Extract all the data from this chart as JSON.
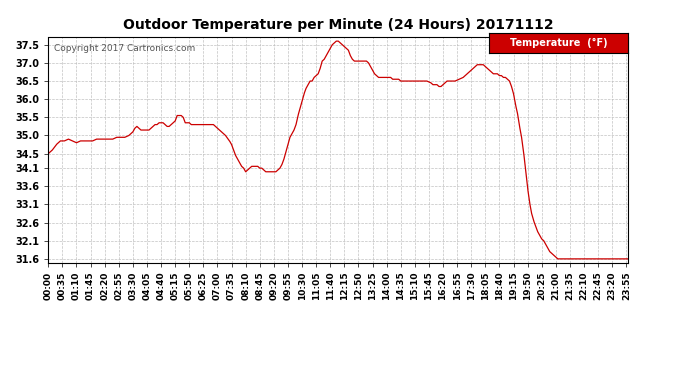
{
  "title": "Outdoor Temperature per Minute (24 Hours) 20171112",
  "copyright": "Copyright 2017 Cartronics.com",
  "legend_label": "Temperature  (°F)",
  "legend_bg": "#cc0000",
  "legend_text_color": "#ffffff",
  "line_color": "#cc0000",
  "bg_color": "#ffffff",
  "grid_color": "#bbbbbb",
  "ylim": [
    31.5,
    37.7
  ],
  "yticks": [
    31.6,
    32.1,
    32.6,
    33.1,
    33.6,
    34.1,
    34.5,
    35.0,
    35.5,
    36.0,
    36.5,
    37.0,
    37.5
  ],
  "xtick_interval": 35,
  "key_points": {
    "0": 34.5,
    "10": 34.6,
    "20": 34.75,
    "30": 34.85,
    "40": 34.85,
    "50": 34.9,
    "60": 34.85,
    "70": 34.8,
    "80": 34.85,
    "90": 34.85,
    "100": 34.85,
    "110": 34.85,
    "120": 34.9,
    "130": 34.9,
    "140": 34.9,
    "150": 34.9,
    "160": 34.9,
    "170": 34.95,
    "180": 34.95,
    "190": 34.95,
    "200": 35.0,
    "210": 35.1,
    "215": 35.2,
    "220": 35.25,
    "225": 35.2,
    "230": 35.15,
    "235": 35.15,
    "240": 35.15,
    "245": 35.15,
    "250": 35.15,
    "255": 35.2,
    "260": 35.25,
    "265": 35.3,
    "270": 35.3,
    "275": 35.35,
    "280": 35.35,
    "285": 35.35,
    "290": 35.3,
    "295": 35.25,
    "300": 35.25,
    "305": 35.3,
    "310": 35.35,
    "315": 35.4,
    "320": 35.55,
    "325": 35.55,
    "330": 35.55,
    "335": 35.5,
    "340": 35.35,
    "345": 35.35,
    "350": 35.35,
    "355": 35.3,
    "360": 35.3,
    "365": 35.3,
    "370": 35.3,
    "375": 35.3,
    "380": 35.3,
    "385": 35.3,
    "390": 35.3,
    "400": 35.3,
    "410": 35.3,
    "415": 35.25,
    "420": 35.2,
    "425": 35.15,
    "430": 35.1,
    "440": 35.0,
    "450": 34.85,
    "455": 34.75,
    "460": 34.6,
    "465": 34.45,
    "470": 34.35,
    "475": 34.25,
    "480": 34.15,
    "485": 34.1,
    "490": 34.0,
    "495": 34.05,
    "500": 34.1,
    "505": 34.15,
    "510": 34.15,
    "515": 34.15,
    "520": 34.15,
    "525": 34.1,
    "530": 34.1,
    "535": 34.05,
    "540": 34.0,
    "545": 34.0,
    "550": 34.0,
    "555": 34.0,
    "560": 34.0,
    "565": 34.0,
    "570": 34.05,
    "575": 34.1,
    "580": 34.2,
    "585": 34.35,
    "590": 34.55,
    "595": 34.75,
    "600": 34.95,
    "605": 35.05,
    "610": 35.15,
    "615": 35.3,
    "620": 35.55,
    "625": 35.75,
    "630": 35.95,
    "635": 36.15,
    "640": 36.3,
    "645": 36.4,
    "650": 36.5,
    "655": 36.5,
    "660": 36.6,
    "665": 36.65,
    "670": 36.7,
    "675": 36.85,
    "680": 37.05,
    "685": 37.1,
    "690": 37.2,
    "695": 37.3,
    "700": 37.4,
    "705": 37.5,
    "710": 37.55,
    "715": 37.6,
    "720": 37.6,
    "725": 37.55,
    "730": 37.5,
    "735": 37.45,
    "740": 37.4,
    "745": 37.35,
    "750": 37.2,
    "755": 37.1,
    "760": 37.05,
    "765": 37.05,
    "770": 37.05,
    "775": 37.05,
    "780": 37.05,
    "785": 37.05,
    "790": 37.05,
    "795": 37.0,
    "800": 36.9,
    "805": 36.8,
    "810": 36.7,
    "815": 36.65,
    "820": 36.6,
    "825": 36.6,
    "830": 36.6,
    "835": 36.6,
    "840": 36.6,
    "845": 36.6,
    "850": 36.6,
    "855": 36.55,
    "860": 36.55,
    "865": 36.55,
    "870": 36.55,
    "875": 36.5,
    "880": 36.5,
    "885": 36.5,
    "890": 36.5,
    "900": 36.5,
    "910": 36.5,
    "920": 36.5,
    "930": 36.5,
    "940": 36.5,
    "950": 36.45,
    "955": 36.4,
    "960": 36.4,
    "965": 36.4,
    "970": 36.35,
    "975": 36.35,
    "980": 36.4,
    "985": 36.45,
    "990": 36.5,
    "995": 36.5,
    "1000": 36.5,
    "1010": 36.5,
    "1020": 36.55,
    "1030": 36.6,
    "1040": 36.7,
    "1050": 36.8,
    "1055": 36.85,
    "1060": 36.9,
    "1065": 36.95,
    "1070": 36.95,
    "1075": 36.95,
    "1080": 36.95,
    "1085": 36.9,
    "1090": 36.85,
    "1095": 36.8,
    "1100": 36.75,
    "1105": 36.7,
    "1110": 36.7,
    "1115": 36.7,
    "1120": 36.65,
    "1125": 36.65,
    "1130": 36.6,
    "1135": 36.6,
    "1140": 36.55,
    "1145": 36.5,
    "1150": 36.35,
    "1155": 36.15,
    "1160": 35.85,
    "1165": 35.6,
    "1170": 35.25,
    "1175": 34.95,
    "1180": 34.55,
    "1185": 34.05,
    "1190": 33.55,
    "1195": 33.15,
    "1200": 32.85,
    "1205": 32.65,
    "1210": 32.5,
    "1215": 32.35,
    "1220": 32.25,
    "1225": 32.15,
    "1230": 32.1,
    "1235": 32.0,
    "1240": 31.9,
    "1245": 31.8,
    "1250": 31.75,
    "1255": 31.7,
    "1260": 31.65,
    "1265": 31.6,
    "1439": 31.6
  }
}
